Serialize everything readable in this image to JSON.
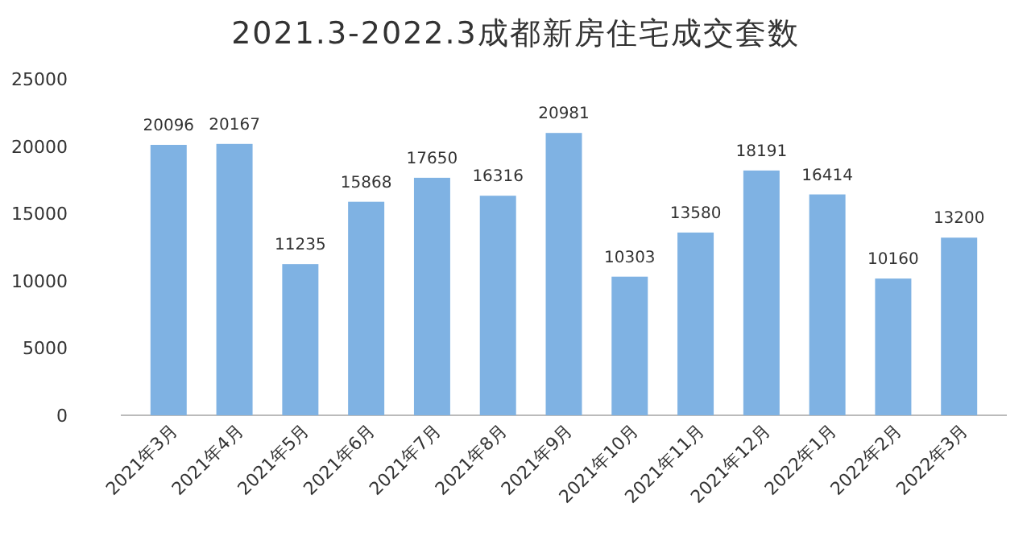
{
  "chart_data": {
    "type": "bar",
    "title": "2021.3-2022.3成都新房住宅成交套数",
    "categories": [
      "2021年3月",
      "2021年4月",
      "2021年5月",
      "2021年6月",
      "2021年7月",
      "2021年8月",
      "2021年9月",
      "2021年10月",
      "2021年11月",
      "2021年12月",
      "2022年1月",
      "2022年2月",
      "2022年3月"
    ],
    "values": [
      20096,
      20167,
      11235,
      15868,
      17650,
      16316,
      20981,
      10303,
      13580,
      18191,
      16414,
      10160,
      13200
    ],
    "color": "#7fb2e3",
    "ylim": [
      0,
      25000
    ],
    "yticks": [
      0,
      5000,
      10000,
      15000,
      20000,
      25000
    ],
    "grid": false,
    "data_labels": true
  }
}
